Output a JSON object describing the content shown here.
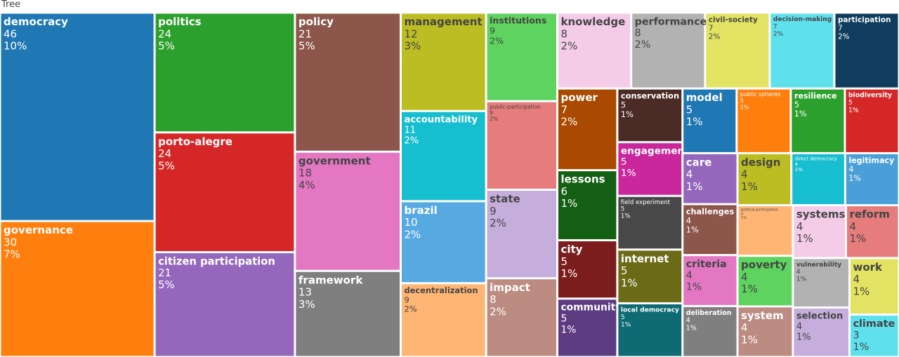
{
  "chart_data": {
    "type": "treemap",
    "title": "Tree",
    "categories": [
      "democracy",
      "governance",
      "politics",
      "porto-alegre",
      "citizen participation",
      "policy",
      "government",
      "framework",
      "management",
      "accountability",
      "brazil",
      "decentralization",
      "institutions",
      "public-participation",
      "state",
      "impact",
      "knowledge",
      "performance",
      "civil-society",
      "decision-making",
      "participation",
      "power",
      "lessons",
      "city",
      "community",
      "conservation",
      "engagement",
      "field experiment",
      "internet",
      "local democracy",
      "model",
      "public spheres",
      "resilience",
      "biodiversity",
      "care",
      "challenges",
      "criteria",
      "deliberation",
      "design",
      "direct democracy",
      "legitimacy",
      "political-participation",
      "poverty",
      "system",
      "systems",
      "reform",
      "vulnerability",
      "selection",
      "work",
      "climate"
    ],
    "values": [
      46,
      30,
      24,
      24,
      21,
      21,
      18,
      13,
      12,
      11,
      10,
      9,
      9,
      9,
      9,
      8,
      8,
      8,
      7,
      7,
      7,
      7,
      6,
      5,
      5,
      5,
      5,
      5,
      5,
      5,
      5,
      5,
      5,
      5,
      4,
      4,
      4,
      4,
      4,
      4,
      4,
      4,
      4,
      4,
      4,
      4,
      4,
      4,
      4,
      3
    ],
    "percent_labels": [
      "10%",
      "7%",
      "5%",
      "5%",
      "5%",
      "5%",
      "4%",
      "3%",
      "3%",
      "2%",
      "2%",
      "2%",
      "2%",
      "2%",
      "2%",
      "2%",
      "2%",
      "2%",
      "2%",
      "2%",
      "2%",
      "2%",
      "1%",
      "1%",
      "1%",
      "1%",
      "1%",
      "1%",
      "1%",
      "1%",
      "1%",
      "1%",
      "1%",
      "1%",
      "1%",
      "1%",
      "1%",
      "1%",
      "1%",
      "1%",
      "1%",
      "1%",
      "1%",
      "1%",
      "1%",
      "1%",
      "1%",
      "1%",
      "1%",
      "1%"
    ],
    "colors": [
      "#1f77b4",
      "#ff7f0e",
      "#2ca02c",
      "#d62728",
      "#9467bd",
      "#8c564b",
      "#e377c2",
      "#7f7f7f",
      "#bcbd22",
      "#17becf",
      "#57a9e2",
      "#ffb574",
      "#5fd35f",
      "#e77c7c",
      "#c6aedc",
      "#bc8b81",
      "#f4cce8",
      "#b2b2b2",
      "#e2e362",
      "#5fe0ed",
      "#103d5d",
      "#a94a00",
      "#135f13",
      "#7c1d1d",
      "#5e3c82",
      "#4a2b25",
      "#c9279b",
      "#484848",
      "#6b6b17",
      "#0f6b73",
      "#1f77b4",
      "#ff7f0e",
      "#2ca02c",
      "#d62728",
      "#9467bd",
      "#8c564b",
      "#e377c2",
      "#7f7f7f",
      "#bcbd22",
      "#17becf",
      "#4a9fd8",
      "#ffb574",
      "#5fd35f",
      "#bc8b81",
      "#f4cce8",
      "#e77c7c",
      "#b2b2b2",
      "#c6aedc",
      "#e2e362",
      "#5fe0ed"
    ]
  }
}
